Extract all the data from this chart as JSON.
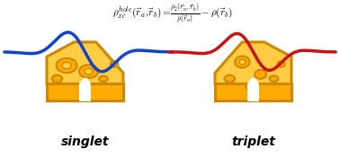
{
  "bg_color": "#ffffff",
  "cheese_fill": "#FFCC44",
  "cheese_edge": "#CC8800",
  "cheese_dark": "#FFAA00",
  "cheese_shadow": "#E89A00",
  "blue_line_color": "#1144CC",
  "red_line_color": "#CC1111",
  "label_singlet": "singlet",
  "label_triplet": "triplet",
  "fig_width": 3.78,
  "fig_height": 1.76,
  "dpi": 100,
  "lw_cheese": 2.2,
  "lw_wave": 2.5
}
